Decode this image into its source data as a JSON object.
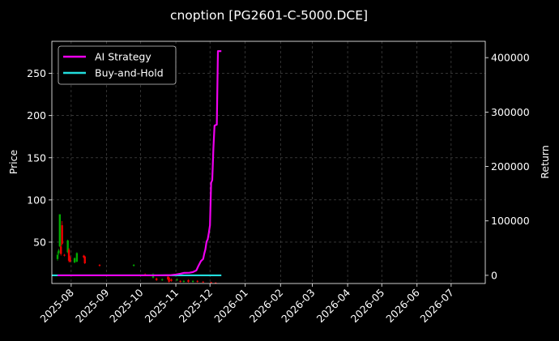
{
  "chart_data": {
    "type": "line",
    "title": "cnoption [PG2601-C-5000.DCE]",
    "xlabel": "",
    "ylabel": "Price",
    "y2label": "Return",
    "x_axis": {
      "type": "date",
      "range": [
        "2025-07-15",
        "2026-07-31"
      ],
      "ticks": [
        "2025-08",
        "2025-09",
        "2025-10",
        "2025-11",
        "2025-12",
        "2026-01",
        "2026-02",
        "2026-03",
        "2026-04",
        "2026-05",
        "2026-06",
        "2026-07"
      ]
    },
    "y_left": {
      "range": [
        1,
        288
      ],
      "ticks": [
        50,
        100,
        150,
        200,
        250
      ]
    },
    "y_right": {
      "range": [
        -15000,
        430000
      ],
      "ticks": [
        0,
        100000,
        200000,
        300000,
        400000
      ]
    },
    "grid": true,
    "legend": {
      "placement": "top-left",
      "entries": [
        "AI Strategy",
        "Buy-and-Hold"
      ]
    },
    "colors": {
      "background": "#000000",
      "ai_strategy": "#ee00ee",
      "buy_and_hold": "#22dddd",
      "up_candle": "#00aa00",
      "down_candle": "#ee0000",
      "grid": "#555555",
      "text": "#ffffff"
    },
    "series": [
      {
        "name": "AI Strategy",
        "axis": "right",
        "points": [
          [
            "2025-07-20",
            0
          ],
          [
            "2025-08-15",
            0
          ],
          [
            "2025-09-15",
            0
          ],
          [
            "2025-10-15",
            0
          ],
          [
            "2025-10-28",
            500
          ],
          [
            "2025-11-01",
            1500
          ],
          [
            "2025-11-05",
            3000
          ],
          [
            "2025-11-08",
            4500
          ],
          [
            "2025-11-13",
            4800
          ],
          [
            "2025-11-16",
            6000
          ],
          [
            "2025-11-19",
            9000
          ],
          [
            "2025-11-21",
            18000
          ],
          [
            "2025-11-23",
            26000
          ],
          [
            "2025-11-25",
            30000
          ],
          [
            "2025-11-26",
            40000
          ],
          [
            "2025-11-27",
            48000
          ],
          [
            "2025-11-28",
            62000
          ],
          [
            "2025-11-29",
            66000
          ],
          [
            "2025-11-30",
            78000
          ],
          [
            "2025-12-01",
            92000
          ],
          [
            "2025-12-02",
            170000
          ],
          [
            "2025-12-03",
            175000
          ],
          [
            "2025-12-04",
            233000
          ],
          [
            "2025-12-05",
            275000
          ],
          [
            "2025-12-07",
            277000
          ],
          [
            "2025-12-08",
            412000
          ],
          [
            "2025-12-11",
            412000
          ]
        ]
      },
      {
        "name": "Buy-and-Hold",
        "axis": "right",
        "points": [
          [
            "2025-07-15",
            0
          ],
          [
            "2025-12-11",
            0
          ]
        ]
      }
    ],
    "candles": [
      {
        "date": "2025-07-20",
        "open": 30,
        "close": 35,
        "high": 38,
        "low": 28
      },
      {
        "date": "2025-07-21",
        "open": 37,
        "close": 40,
        "high": 42,
        "low": 35
      },
      {
        "date": "2025-07-22",
        "open": 45,
        "close": 83,
        "high": 83,
        "low": 44
      },
      {
        "date": "2025-07-23",
        "open": 45,
        "close": 36,
        "high": 48,
        "low": 34
      },
      {
        "date": "2025-07-24",
        "open": 70,
        "close": 48,
        "high": 75,
        "low": 46
      },
      {
        "date": "2025-07-26",
        "open": 35,
        "close": 34,
        "high": 36,
        "low": 33
      },
      {
        "date": "2025-07-29",
        "open": 38,
        "close": 52,
        "high": 53,
        "low": 37
      },
      {
        "date": "2025-07-30",
        "open": 41,
        "close": 28,
        "high": 43,
        "low": 26
      },
      {
        "date": "2025-07-31",
        "open": 32,
        "close": 27,
        "high": 34,
        "low": 26
      },
      {
        "date": "2025-08-04",
        "open": 26,
        "close": 31,
        "high": 32,
        "low": 25
      },
      {
        "date": "2025-08-06",
        "open": 27,
        "close": 37,
        "high": 38,
        "low": 26
      },
      {
        "date": "2025-08-12",
        "open": 34,
        "close": 32,
        "high": 35,
        "low": 31
      },
      {
        "date": "2025-08-13",
        "open": 33,
        "close": 25,
        "high": 34,
        "low": 24
      },
      {
        "date": "2025-08-26",
        "open": 23,
        "close": 22,
        "high": 24,
        "low": 21
      },
      {
        "date": "2025-09-25",
        "open": 22,
        "close": 23,
        "high": 24,
        "low": 21
      },
      {
        "date": "2025-10-05",
        "open": 12,
        "close": 11,
        "high": 13,
        "low": 10
      },
      {
        "date": "2025-10-12",
        "open": 8,
        "close": 12,
        "high": 13,
        "low": 7
      },
      {
        "date": "2025-10-15",
        "open": 7,
        "close": 5,
        "high": 8,
        "low": 4
      },
      {
        "date": "2025-10-20",
        "open": 5,
        "close": 6,
        "high": 7,
        "low": 4
      },
      {
        "date": "2025-10-25",
        "open": 9,
        "close": 6,
        "high": 10,
        "low": 5
      },
      {
        "date": "2025-10-26",
        "open": 8,
        "close": 3,
        "high": 9,
        "low": 2
      },
      {
        "date": "2025-10-28",
        "open": 6,
        "close": 4,
        "high": 7,
        "low": 3
      },
      {
        "date": "2025-11-02",
        "open": 5,
        "close": 6,
        "high": 7,
        "low": 4
      },
      {
        "date": "2025-11-05",
        "open": 4,
        "close": 3,
        "high": 5,
        "low": 2
      },
      {
        "date": "2025-11-08",
        "open": 3,
        "close": 4,
        "high": 5,
        "low": 2
      },
      {
        "date": "2025-11-12",
        "open": 5,
        "close": 3,
        "high": 6,
        "low": 2
      },
      {
        "date": "2025-11-16",
        "open": 3,
        "close": 4,
        "high": 5,
        "low": 2
      },
      {
        "date": "2025-11-20",
        "open": 4,
        "close": 3,
        "high": 5,
        "low": 2
      },
      {
        "date": "2025-11-25",
        "open": 3,
        "close": 2.5,
        "high": 4,
        "low": 2
      },
      {
        "date": "2025-12-02",
        "open": 2.5,
        "close": 2,
        "high": 3,
        "low": 1.5
      },
      {
        "date": "2025-12-06",
        "open": 2,
        "close": 1.5,
        "high": 2.5,
        "low": 1.2
      }
    ]
  }
}
